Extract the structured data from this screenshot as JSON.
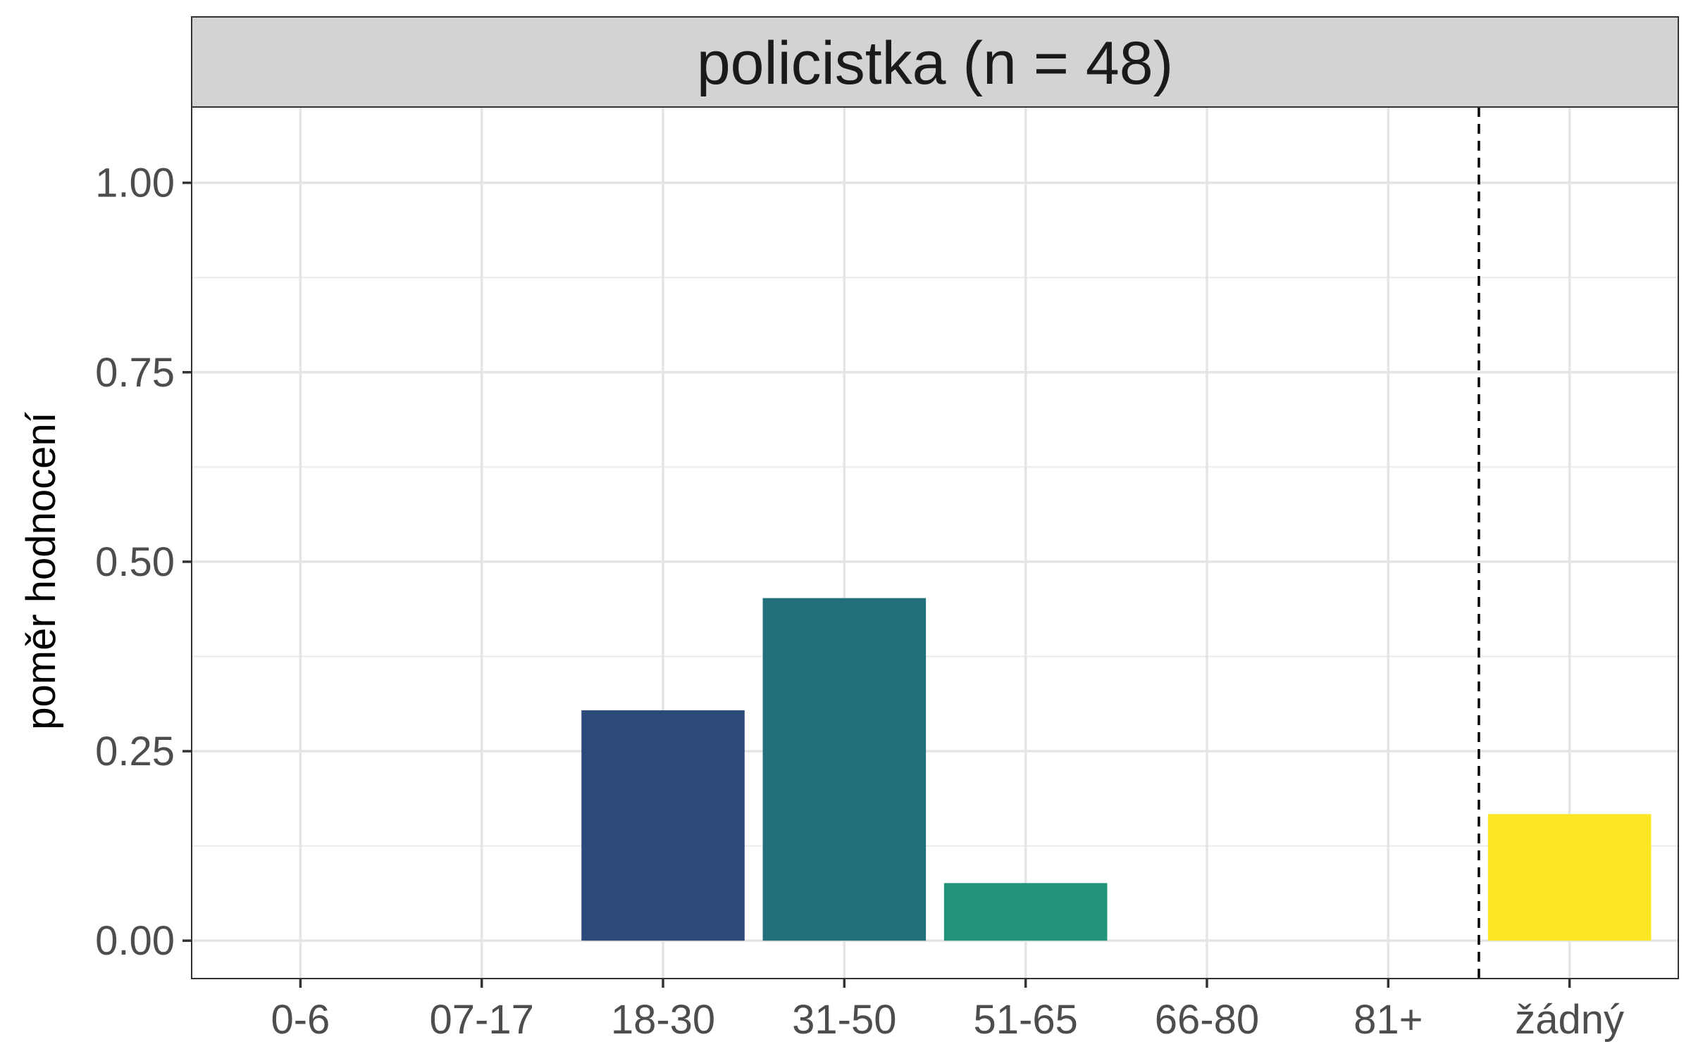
{
  "chart_data": {
    "type": "bar",
    "facet_label": "policistka (n = 48)",
    "ylabel": "poměr hodnocení",
    "xlabel": "",
    "categories": [
      "0-6",
      "07-17",
      "18-30",
      "31-50",
      "51-65",
      "66-80",
      "81+",
      "žádný"
    ],
    "values": [
      0,
      0,
      0.304,
      0.452,
      0.076,
      0,
      0,
      0.167
    ],
    "bar_colors": [
      "#440154",
      "#46337E",
      "#2B4A7A",
      "#21707C",
      "#20937A",
      "#5EC962",
      "#B8DE29",
      "#FDE725"
    ],
    "ylim": [
      -0.05,
      1.1
    ],
    "yticks": [
      0.0,
      0.25,
      0.5,
      0.75,
      1.0
    ],
    "ytick_labels": [
      "0.00",
      "0.25",
      "0.50",
      "0.75",
      "1.00"
    ],
    "grid": true,
    "reference_line": {
      "style": "dashed",
      "between": [
        "81+",
        "žádný"
      ]
    },
    "strip_background": "#D3D3D3"
  }
}
